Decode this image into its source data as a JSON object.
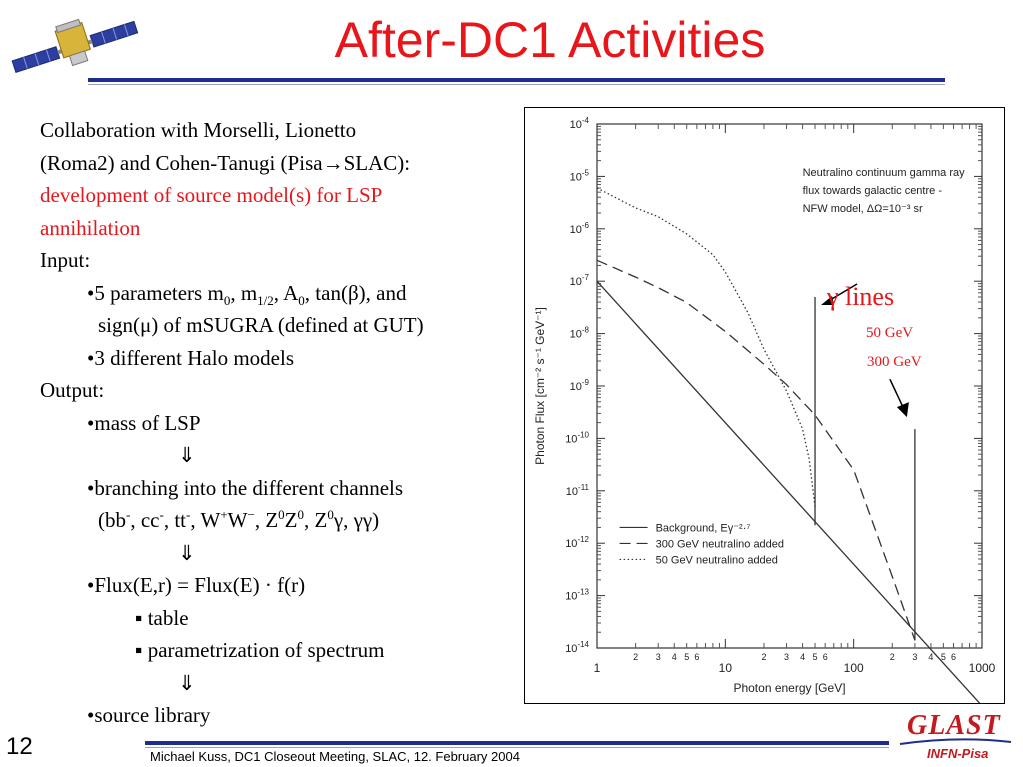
{
  "slide": {
    "title": "After-DC1 Activities",
    "page_number": "12",
    "footer": "Michael Kuss, DC1 Closeout Meeting, SLAC, 12. February 2004",
    "logo_text": "GLAST",
    "logo_sub": "INFN-Pisa",
    "title_color": "#e8151b",
    "rule_color": "#1f2d8c"
  },
  "body": {
    "collab_1": "Collaboration with Morselli, Lionetto",
    "collab_2a": "(Roma2) and Cohen-Tanugi (Pisa",
    "collab_2_arrow": "→",
    "collab_2b": "SLAC):",
    "red_1": "development of source model(s) for LSP",
    "red_2": "annihilation",
    "input_label": "Input:",
    "bullet": "•",
    "subbullet": "▪",
    "down_arrow": "⇓",
    "params_line1": {
      "p1": "5 parameters m",
      "s0": "0",
      "p2": ", m",
      "s1": "1/2",
      "p3": ", A",
      "s2": "0",
      "p4": ", tan(β), and"
    },
    "params_line2": "sign(μ) of mSUGRA (defined at GUT)",
    "halo": "3 different Halo models",
    "output_label": "Output:",
    "mass": "mass of LSP",
    "branching": "branching into the different channels",
    "channels": {
      "a": "(bb",
      "bar1": "-",
      "b": ", cc",
      "bar2": "-",
      "c": ", tt",
      "bar3": "-",
      "d": ", W",
      "sp": "+",
      "e": "W",
      "sm": "−",
      "f": ", Z",
      "z1": "0",
      "g": "Z",
      "z2": "0",
      "h": ", Z",
      "z3": "0",
      "i": "γ, γγ)"
    },
    "flux": "Flux(E,r) = Flux(E) · f(r)",
    "table": "table",
    "param": "parametrization of spectrum",
    "source_library": "source library"
  },
  "annotations": {
    "gamma_lines": "γ lines",
    "label_50": "50 GeV",
    "label_300": "300 GeV",
    "color": "#e8151b"
  },
  "chart_data": {
    "type": "line",
    "xscale": "log",
    "yscale": "log",
    "xlim": [
      1,
      1000
    ],
    "ylim": [
      1e-14,
      0.0001
    ],
    "xlabel": "Photon energy [GeV]",
    "ylabel": "Photon Flux [cm⁻² s⁻¹ GeV⁻¹]",
    "x_ticks": [
      "1",
      "10",
      "100",
      "1000"
    ],
    "x_minor_ticks": [
      "2",
      "3",
      "4",
      "5",
      "6",
      "2",
      "3",
      "4",
      "5",
      "6",
      "2",
      "3",
      "4",
      "5",
      "6"
    ],
    "y_ticks": [
      {
        "base": "10",
        "exp": "-4"
      },
      {
        "base": "10",
        "exp": "-5"
      },
      {
        "base": "10",
        "exp": "-6"
      },
      {
        "base": "10",
        "exp": "-7"
      },
      {
        "base": "10",
        "exp": "-8"
      },
      {
        "base": "10",
        "exp": "-9"
      },
      {
        "base": "10",
        "exp": "-10"
      },
      {
        "base": "10",
        "exp": "-11"
      },
      {
        "base": "10",
        "exp": "-12"
      },
      {
        "base": "10",
        "exp": "-13"
      },
      {
        "base": "10",
        "exp": "-14"
      }
    ],
    "annotation_lines": [
      "Neutralino continuum gamma ray",
      "flux towards galactic centre -",
      "NFW model, ΔΩ=10⁻³ sr"
    ],
    "legend_position": "bottom-left",
    "series": [
      {
        "name": "Background, Eγ⁻²·⁷",
        "style": "solid",
        "x": [
          1,
          1000
        ],
        "y": [
          1e-07,
          7.9e-16
        ]
      },
      {
        "name": "300 GeV neutralino added",
        "style": "dashed",
        "x": [
          1,
          2,
          3,
          5,
          10,
          20,
          30,
          50,
          100,
          200,
          300
        ],
        "y": [
          2.5e-07,
          1.2e-07,
          7.5e-08,
          3.9e-08,
          1.1e-08,
          2.6e-09,
          1.06e-09,
          2.8e-10,
          2.5e-11,
          2.3e-13,
          1.4e-14
        ]
      },
      {
        "name": "50 GeV neutralino added",
        "style": "dotted",
        "x": [
          1,
          2,
          3,
          5,
          8,
          10,
          15,
          20,
          30,
          40,
          45,
          50
        ],
        "y": [
          6e-06,
          2.5e-06,
          1.7e-06,
          8e-07,
          3.2e-07,
          1.5e-07,
          2.5e-08,
          5e-09,
          8e-10,
          1.5e-10,
          4e-11,
          5e-12
        ]
      }
    ],
    "gamma_lines": [
      {
        "x": 50,
        "y_low": 2.2e-12,
        "y_high": 5e-08
      },
      {
        "x": 300,
        "y_low": 1.4e-14,
        "y_high": 1.5e-10
      }
    ]
  }
}
